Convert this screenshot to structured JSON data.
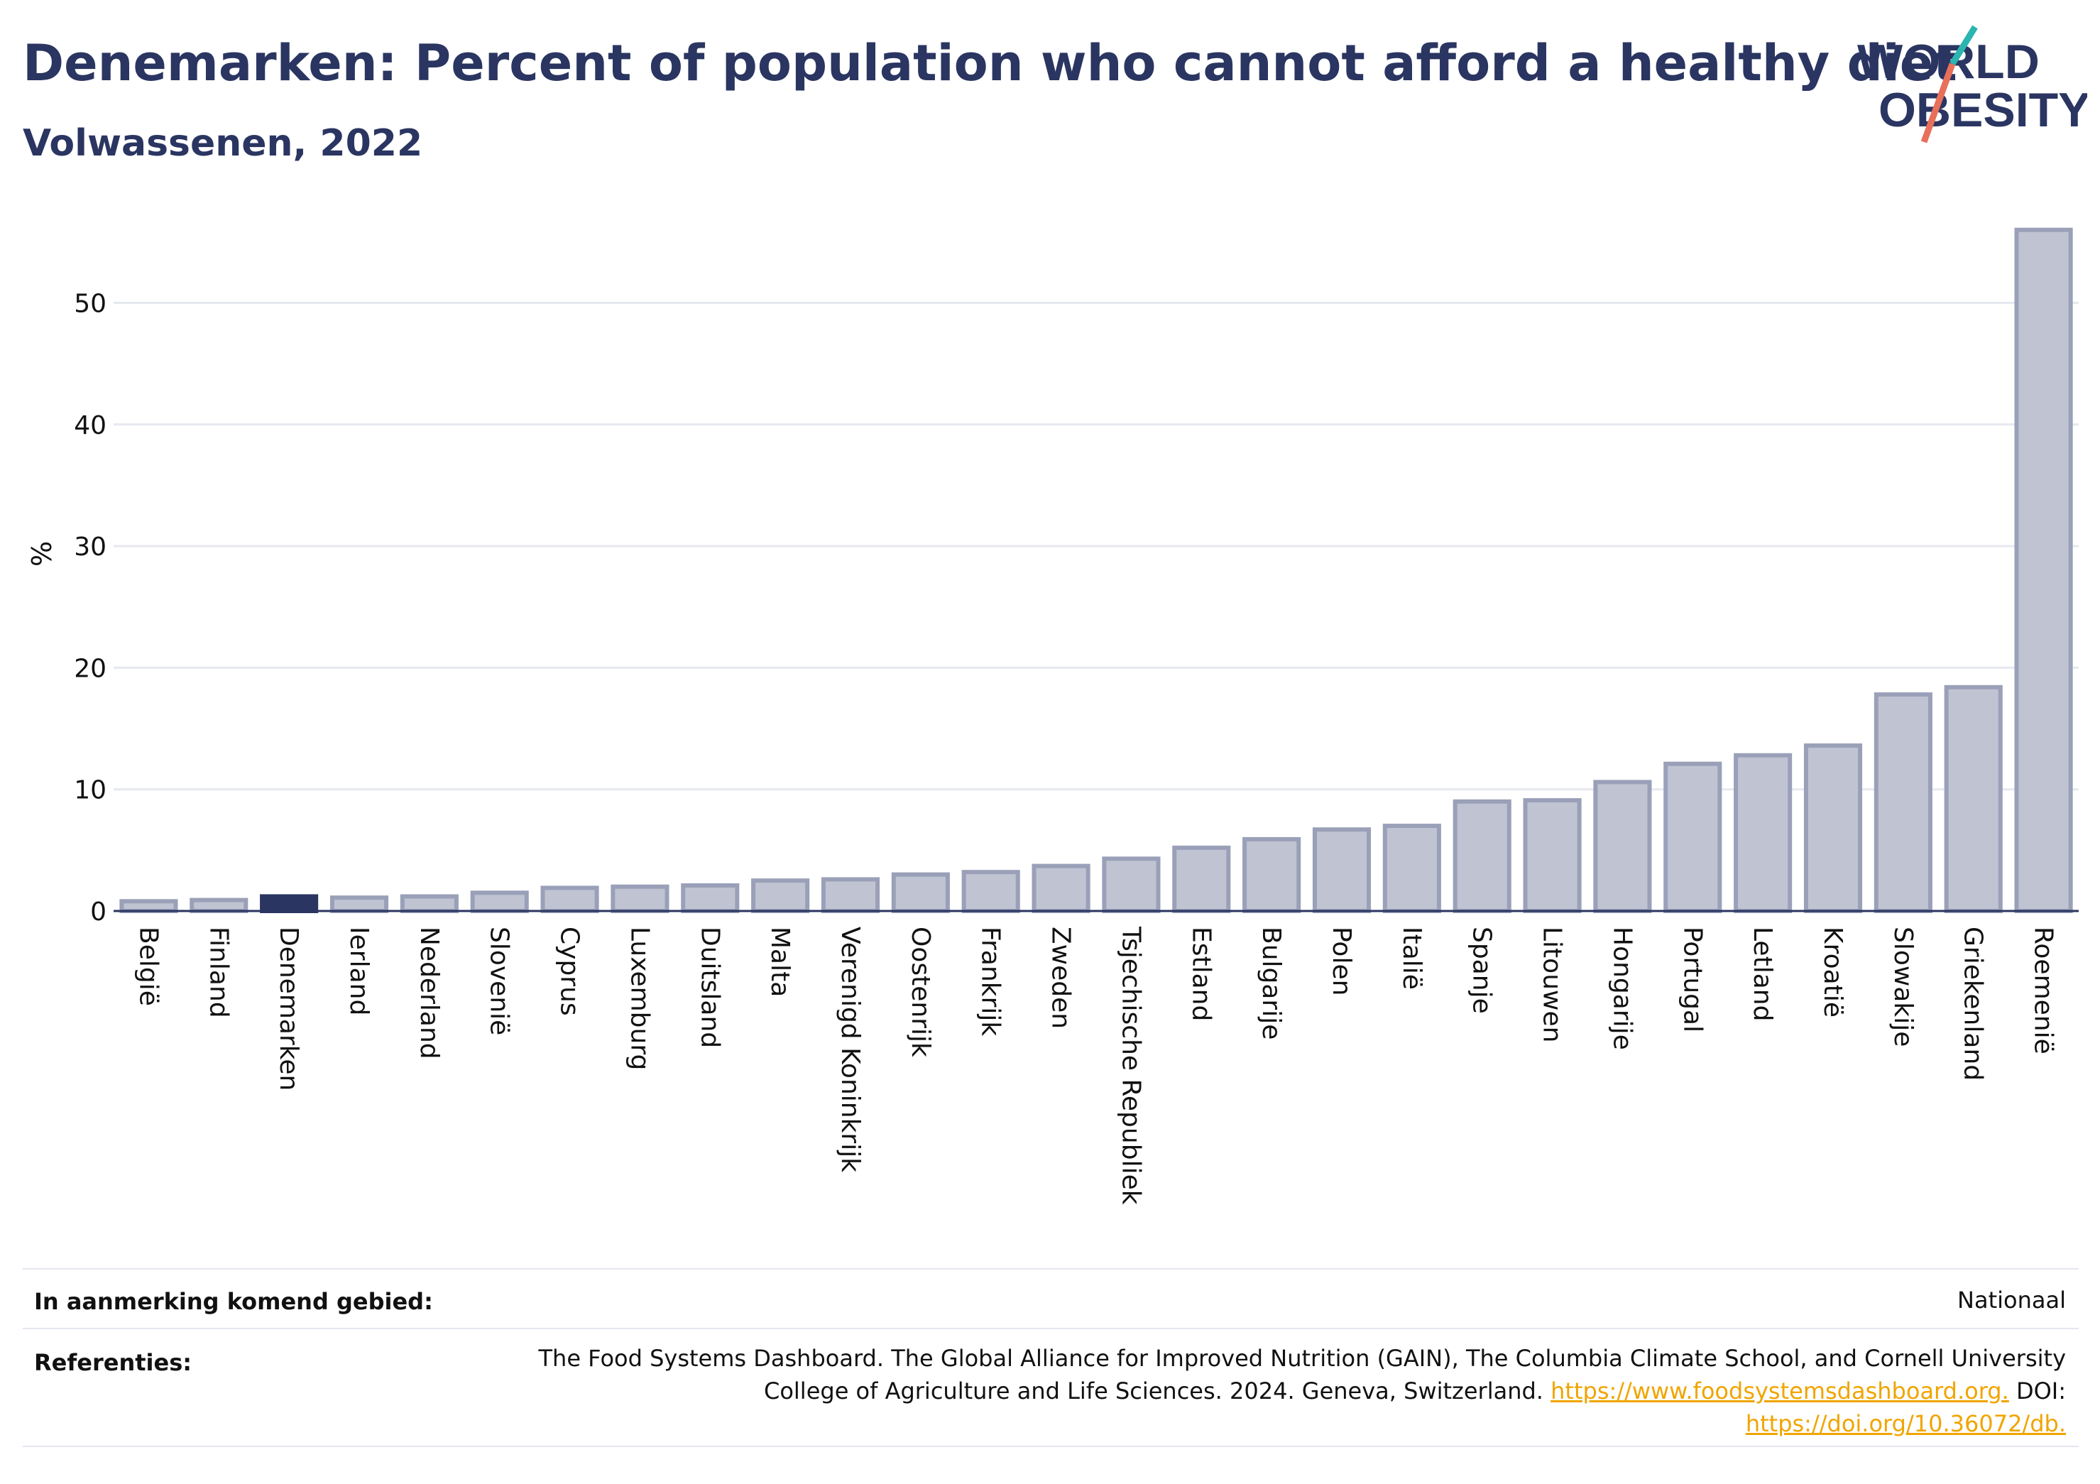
{
  "header": {
    "title": "Denemarken: Percent of population who cannot afford a healthy diet",
    "subtitle": "Volwassenen, 2022"
  },
  "logo": {
    "line1": "WORLD",
    "line2": "OBESITY"
  },
  "colors": {
    "text": "#2a3561",
    "bar": "#c0c4d2",
    "bar_edge": "#9aa0b8",
    "highlight": "#2a3561",
    "grid": "#e6e8ef",
    "link": "#f0a500",
    "logo_teal": "#2bb5b0",
    "logo_coral": "#e8705a"
  },
  "chart_data": {
    "type": "bar",
    "ylabel": "%",
    "ylim": [
      0,
      58
    ],
    "yticks": [
      0,
      10,
      20,
      30,
      40,
      50
    ],
    "highlight": "Denemarken",
    "categories": [
      "België",
      "Finland",
      "Denemarken",
      "Ierland",
      "Nederland",
      "Slovenië",
      "Cyprus",
      "Luxemburg",
      "Duitsland",
      "Malta",
      "Verenigd Koninkrijk",
      "Oostenrijk",
      "Frankrijk",
      "Zweden",
      "Tsjechische Republiek",
      "Estland",
      "Bulgarije",
      "Polen",
      "Italië",
      "Spanje",
      "Litouwen",
      "Hongarije",
      "Portugal",
      "Letland",
      "Kroatië",
      "Slowakije",
      "Griekenland",
      "Roemenië"
    ],
    "values": [
      0.8,
      0.9,
      1.2,
      1.1,
      1.2,
      1.5,
      1.9,
      2.0,
      2.1,
      2.5,
      2.6,
      3.0,
      3.2,
      3.7,
      4.3,
      5.2,
      5.9,
      6.7,
      7.0,
      9.0,
      9.1,
      10.6,
      12.1,
      12.8,
      13.6,
      17.8,
      18.4,
      56.0
    ],
    "grid": true,
    "legend": "none"
  },
  "footer": {
    "region_label": "In aanmerking komend gebied:",
    "region_value": "Nationaal",
    "refs_label": "Referenties:",
    "refs_line1": "The Food Systems Dashboard. The Global Alliance for Improved Nutrition (GAIN), The Columbia Climate School, and Cornell University",
    "refs_line2_text": "College of Agriculture and Life Sciences. 2024. Geneva, Switzerland.",
    "refs_link1": "https://www.foodsystemsdashboard.org.",
    "refs_doi_label": "DOI:",
    "refs_link2": "https://doi.org/10.36072/db."
  }
}
